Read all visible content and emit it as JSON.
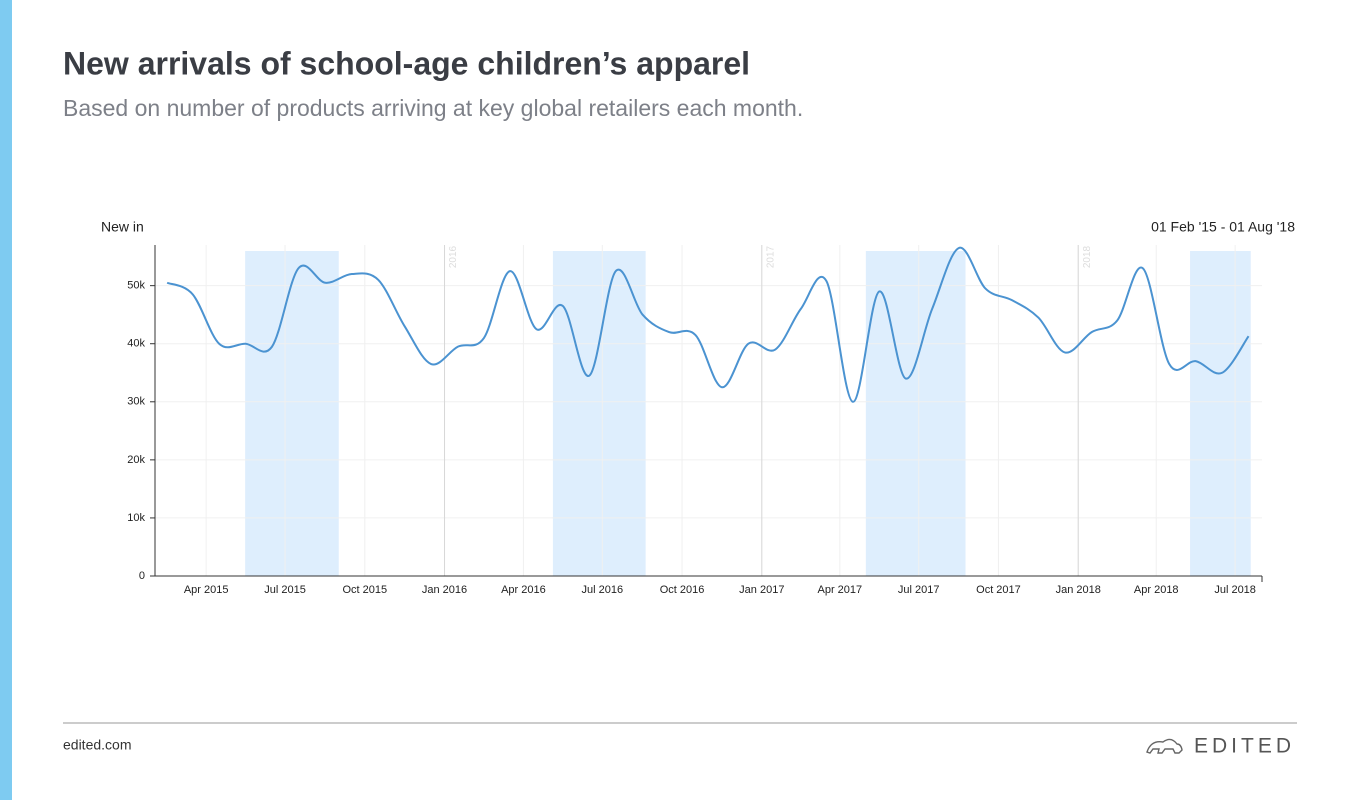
{
  "chart_data": {
    "type": "line",
    "title": "New arrivals of school-age children’s apparel",
    "subtitle": "Based on number of products arriving at key global retailers each month.",
    "y_axis_label": "New in",
    "date_range": "01 Feb '15 - 01 Aug '18",
    "footer_left": "edited.com",
    "brand": "EDITED",
    "x": [
      "2015-02",
      "2015-03",
      "2015-04",
      "2015-05",
      "2015-06",
      "2015-07",
      "2015-08",
      "2015-09",
      "2015-10",
      "2015-11",
      "2015-12",
      "2016-01",
      "2016-02",
      "2016-03",
      "2016-04",
      "2016-05",
      "2016-06",
      "2016-07",
      "2016-08",
      "2016-09",
      "2016-10",
      "2016-11",
      "2016-12",
      "2017-01",
      "2017-02",
      "2017-03",
      "2017-04",
      "2017-05",
      "2017-06",
      "2017-07",
      "2017-08",
      "2017-09",
      "2017-10",
      "2017-11",
      "2017-12",
      "2018-01",
      "2018-02",
      "2018-03",
      "2018-04",
      "2018-05",
      "2018-06",
      "2018-07"
    ],
    "series": [
      {
        "name": "New in",
        "color": "#4b93d1",
        "values": [
          50500,
          48500,
          40000,
          40000,
          39500,
          53000,
          50500,
          52000,
          51000,
          43000,
          36500,
          39500,
          41000,
          52500,
          42500,
          46500,
          34500,
          52500,
          45000,
          42000,
          41500,
          32500,
          40000,
          39000,
          46000,
          50800,
          30000,
          49000,
          34000,
          46000,
          56500,
          49500,
          47500,
          44500,
          38500,
          42000,
          44000,
          53000,
          36500,
          37000,
          35000,
          41300
        ]
      }
    ],
    "xlim": [
      "2015-02-01",
      "2018-08-01"
    ],
    "xticks": [
      {
        "value": "2015-04-01",
        "label": "Apr 2015"
      },
      {
        "value": "2015-07-01",
        "label": "Jul 2015"
      },
      {
        "value": "2015-10-01",
        "label": "Oct 2015"
      },
      {
        "value": "2016-01-01",
        "label": "Jan 2016"
      },
      {
        "value": "2016-04-01",
        "label": "Apr 2016"
      },
      {
        "value": "2016-07-01",
        "label": "Jul 2016"
      },
      {
        "value": "2016-10-01",
        "label": "Oct 2016"
      },
      {
        "value": "2017-01-01",
        "label": "Jan 2017"
      },
      {
        "value": "2017-04-01",
        "label": "Apr 2017"
      },
      {
        "value": "2017-07-01",
        "label": "Jul 2017"
      },
      {
        "value": "2017-10-01",
        "label": "Oct 2017"
      },
      {
        "value": "2018-01-01",
        "label": "Jan 2018"
      },
      {
        "value": "2018-04-01",
        "label": "Apr 2018"
      },
      {
        "value": "2018-07-01",
        "label": "Jul 2018"
      }
    ],
    "ylim": [
      0,
      57000
    ],
    "yticks": [
      0,
      {
        "value": 10000,
        "label": "10k"
      },
      {
        "value": 20000,
        "label": "20k"
      },
      {
        "value": 30000,
        "label": "30k"
      },
      {
        "value": 40000,
        "label": "40k"
      },
      {
        "value": 50000,
        "label": "50k"
      }
    ],
    "grid": true,
    "highlights": [
      {
        "from": "2015-05-16",
        "to": "2015-09-01"
      },
      {
        "from": "2016-05-05",
        "to": "2016-08-20"
      },
      {
        "from": "2017-05-01",
        "to": "2017-08-24"
      },
      {
        "from": "2018-05-10",
        "to": "2018-07-19"
      }
    ],
    "highlight_color": "#deeefd",
    "year_markers": [
      {
        "date": "2016-01-01",
        "label": "2016"
      },
      {
        "date": "2017-01-01",
        "label": "2017"
      },
      {
        "date": "2018-01-01",
        "label": "2018"
      }
    ]
  }
}
